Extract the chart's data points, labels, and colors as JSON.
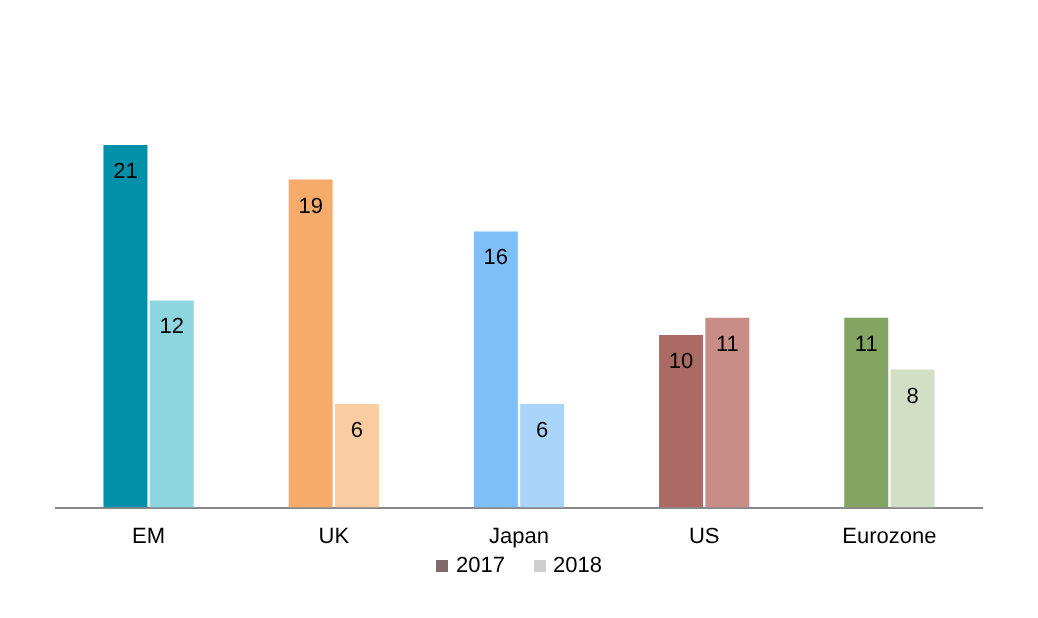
{
  "chart_data": {
    "type": "bar",
    "categories": [
      "EM",
      "UK",
      "Japan",
      "US",
      "Eurozone"
    ],
    "series": [
      {
        "name": "2017",
        "color": "#7f6b6b",
        "colors": [
          "#0090a8",
          "#f7ab6b",
          "#7fbff7",
          "#ab6b64",
          "#82a662"
        ],
        "values": [
          21,
          19,
          16,
          10,
          11
        ]
      },
      {
        "name": "2018",
        "color": "#cfcfcf",
        "colors": [
          "#8dd6e0",
          "#fbcba2",
          "#aad4fa",
          "#c98d87",
          "#d3dfc4"
        ],
        "values": [
          12,
          6,
          6,
          11,
          8
        ]
      }
    ],
    "data_labels": true,
    "legend": "bottom",
    "grid": false,
    "tick_labels": "x"
  }
}
